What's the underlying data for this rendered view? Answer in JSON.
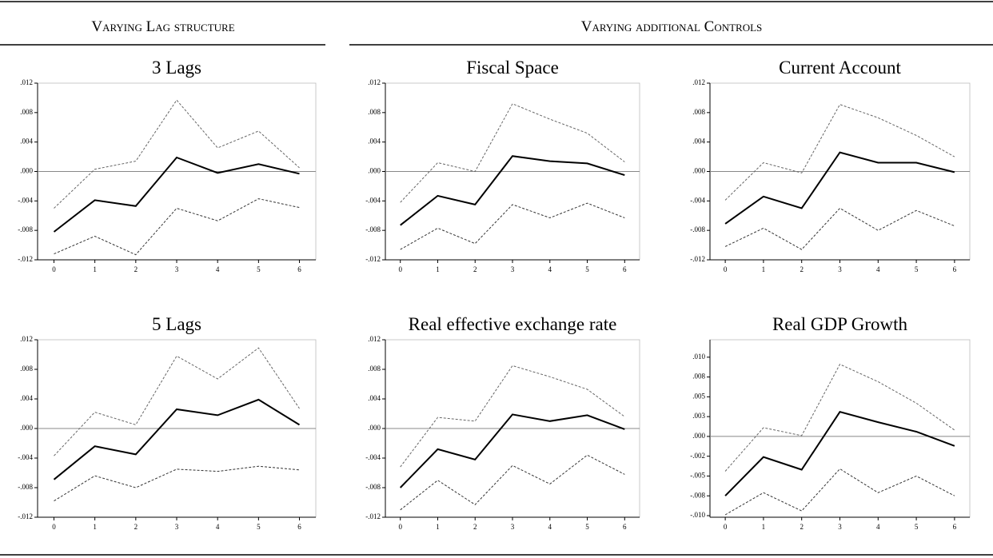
{
  "headers": [
    "Varying Lag structure",
    "Varying additional Controls"
  ],
  "chart_data": [
    {
      "type": "line",
      "title": "3 Lags",
      "x": [
        0,
        1,
        2,
        3,
        4,
        5,
        6
      ],
      "xlim": [
        -0.4,
        6.4
      ],
      "xticks": [
        0,
        1,
        2,
        3,
        4,
        5,
        6
      ],
      "ylim": [
        -0.012,
        0.012
      ],
      "yticks": [
        {
          "value": 0.012,
          "label": ".012"
        },
        {
          "value": 0.008,
          "label": ".008"
        },
        {
          "value": 0.004,
          "label": ".004"
        },
        {
          "value": 0,
          "label": ".000"
        },
        {
          "value": -0.004,
          "label": "-.004"
        },
        {
          "value": -0.008,
          "label": "-.008"
        },
        {
          "value": -0.012,
          "label": "-.012"
        }
      ],
      "series": [
        {
          "color": "#666666",
          "style": "dashed",
          "values": [
            -0.005,
            0.0003,
            0.0014,
            0.0097,
            0.0032,
            0.0055,
            0.0005
          ]
        },
        {
          "color": "#000000",
          "style": "solid",
          "values": [
            -0.0082,
            -0.0039,
            -0.0047,
            0.0019,
            -0.0002,
            0.001,
            -0.0003
          ]
        },
        {
          "color": "#333333",
          "style": "dashed",
          "values": [
            -0.0112,
            -0.0088,
            -0.0113,
            -0.005,
            -0.0067,
            -0.0037,
            -0.0049
          ]
        }
      ]
    },
    {
      "type": "line",
      "title": "Fiscal Space",
      "x": [
        0,
        1,
        2,
        3,
        4,
        5,
        6
      ],
      "xlim": [
        -0.4,
        6.4
      ],
      "xticks": [
        0,
        1,
        2,
        3,
        4,
        5,
        6
      ],
      "ylim": [
        -0.012,
        0.012
      ],
      "yticks": [
        {
          "value": 0.012,
          "label": ".012"
        },
        {
          "value": 0.008,
          "label": ".008"
        },
        {
          "value": 0.004,
          "label": ".004"
        },
        {
          "value": 0,
          "label": ".000"
        },
        {
          "value": -0.004,
          "label": "-.004"
        },
        {
          "value": -0.008,
          "label": "-.008"
        },
        {
          "value": -0.012,
          "label": "-.012"
        }
      ],
      "series": [
        {
          "color": "#666666",
          "style": "dashed",
          "values": [
            -0.0042,
            0.0012,
            0.0,
            0.0092,
            0.0071,
            0.0052,
            0.0013
          ]
        },
        {
          "color": "#000000",
          "style": "solid",
          "values": [
            -0.0073,
            -0.0033,
            -0.0045,
            0.0021,
            0.0014,
            0.0011,
            -0.0005
          ]
        },
        {
          "color": "#333333",
          "style": "dashed",
          "values": [
            -0.0106,
            -0.0077,
            -0.0098,
            -0.0045,
            -0.0063,
            -0.0043,
            -0.0063
          ]
        }
      ]
    },
    {
      "type": "line",
      "title": "Current Account",
      "x": [
        0,
        1,
        2,
        3,
        4,
        5,
        6
      ],
      "xlim": [
        -0.4,
        6.4
      ],
      "xticks": [
        0,
        1,
        2,
        3,
        4,
        5,
        6
      ],
      "ylim": [
        -0.012,
        0.012
      ],
      "yticks": [
        {
          "value": 0.012,
          "label": ".012"
        },
        {
          "value": 0.008,
          "label": ".008"
        },
        {
          "value": 0.004,
          "label": ".004"
        },
        {
          "value": 0,
          "label": ".000"
        },
        {
          "value": -0.004,
          "label": "-.004"
        },
        {
          "value": -0.008,
          "label": "-.008"
        },
        {
          "value": -0.012,
          "label": "-.012"
        }
      ],
      "series": [
        {
          "color": "#666666",
          "style": "dashed",
          "values": [
            -0.0039,
            0.0012,
            -0.0002,
            0.0091,
            0.0073,
            0.0049,
            0.002
          ]
        },
        {
          "color": "#000000",
          "style": "solid",
          "values": [
            -0.0071,
            -0.0034,
            -0.005,
            0.0026,
            0.0012,
            0.0012,
            -0.0001
          ]
        },
        {
          "color": "#333333",
          "style": "dashed",
          "values": [
            -0.0102,
            -0.0077,
            -0.0106,
            -0.005,
            -0.008,
            -0.0053,
            -0.0074
          ]
        }
      ]
    },
    {
      "type": "line",
      "title": "5 Lags",
      "x": [
        0,
        1,
        2,
        3,
        4,
        5,
        6
      ],
      "xlim": [
        -0.4,
        6.4
      ],
      "xticks": [
        0,
        1,
        2,
        3,
        4,
        5,
        6
      ],
      "ylim": [
        -0.012,
        0.012
      ],
      "yticks": [
        {
          "value": 0.012,
          "label": ".012"
        },
        {
          "value": 0.008,
          "label": ".008"
        },
        {
          "value": 0.004,
          "label": ".004"
        },
        {
          "value": 0,
          "label": ".000"
        },
        {
          "value": -0.004,
          "label": "-.004"
        },
        {
          "value": -0.008,
          "label": "-.008"
        },
        {
          "value": -0.012,
          "label": "-.012"
        }
      ],
      "series": [
        {
          "color": "#666666",
          "style": "dashed",
          "values": [
            -0.0037,
            0.0022,
            0.0005,
            0.0098,
            0.0067,
            0.0109,
            0.0027
          ]
        },
        {
          "color": "#000000",
          "style": "solid",
          "values": [
            -0.0069,
            -0.0024,
            -0.0035,
            0.0026,
            0.0018,
            0.0039,
            0.0005
          ]
        },
        {
          "color": "#333333",
          "style": "dashed",
          "values": [
            -0.0098,
            -0.0064,
            -0.008,
            -0.0055,
            -0.0058,
            -0.0051,
            -0.0056
          ]
        }
      ]
    },
    {
      "type": "line",
      "title": "Real effective exchange rate",
      "x": [
        0,
        1,
        2,
        3,
        4,
        5,
        6
      ],
      "xlim": [
        -0.4,
        6.4
      ],
      "xticks": [
        0,
        1,
        2,
        3,
        4,
        5,
        6
      ],
      "ylim": [
        -0.012,
        0.012
      ],
      "yticks": [
        {
          "value": 0.012,
          "label": ".012"
        },
        {
          "value": 0.008,
          "label": ".008"
        },
        {
          "value": 0.004,
          "label": ".004"
        },
        {
          "value": 0,
          "label": ".000"
        },
        {
          "value": -0.004,
          "label": "-.004"
        },
        {
          "value": -0.008,
          "label": "-.008"
        },
        {
          "value": -0.012,
          "label": "-.012"
        }
      ],
      "series": [
        {
          "color": "#666666",
          "style": "dashed",
          "values": [
            -0.0052,
            0.0015,
            0.001,
            0.0085,
            0.007,
            0.0053,
            0.0016
          ]
        },
        {
          "color": "#000000",
          "style": "solid",
          "values": [
            -0.008,
            -0.0028,
            -0.0042,
            0.0019,
            0.001,
            0.0018,
            -0.0001
          ]
        },
        {
          "color": "#333333",
          "style": "dashed",
          "values": [
            -0.011,
            -0.007,
            -0.0103,
            -0.005,
            -0.0075,
            -0.0036,
            -0.0062
          ]
        }
      ]
    },
    {
      "type": "line",
      "title": "Real GDP Growth",
      "x": [
        0,
        1,
        2,
        3,
        4,
        5,
        6
      ],
      "xlim": [
        -0.4,
        6.4
      ],
      "xticks": [
        0,
        1,
        2,
        3,
        4,
        5,
        6
      ],
      "ylim": [
        -0.0102,
        0.0122
      ],
      "yticks": [
        {
          "value": 0.01,
          "label": ".010"
        },
        {
          "value": 0.0075,
          "label": ".008"
        },
        {
          "value": 0.005,
          "label": ".005"
        },
        {
          "value": 0.0025,
          "label": ".003"
        },
        {
          "value": 0,
          "label": ".000"
        },
        {
          "value": -0.0025,
          "label": "-.002"
        },
        {
          "value": -0.005,
          "label": "-.005"
        },
        {
          "value": -0.0075,
          "label": "-.008"
        },
        {
          "value": -0.01,
          "label": "-.010"
        }
      ],
      "series": [
        {
          "color": "#666666",
          "style": "dashed",
          "values": [
            -0.0044,
            0.0011,
            0.0001,
            0.0091,
            0.0069,
            0.0042,
            0.0008
          ]
        },
        {
          "color": "#000000",
          "style": "solid",
          "values": [
            -0.0075,
            -0.0026,
            -0.0042,
            0.0031,
            0.0018,
            0.0006,
            -0.0012
          ]
        },
        {
          "color": "#333333",
          "style": "dashed",
          "values": [
            -0.0099,
            -0.0071,
            -0.0094,
            -0.0041,
            -0.0071,
            -0.005,
            -0.0075
          ]
        }
      ]
    }
  ]
}
